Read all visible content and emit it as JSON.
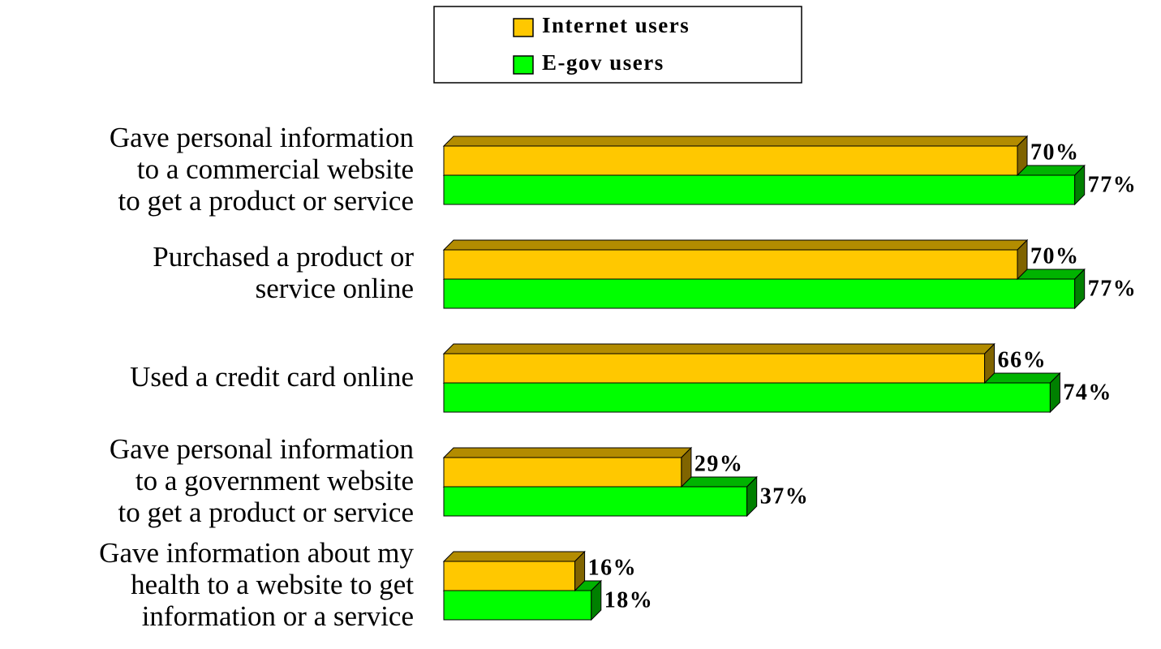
{
  "chart_data": {
    "type": "bar",
    "orientation": "horizontal",
    "categories": [
      "Gave personal information\nto a commercial website\nto get a product or service",
      "Purchased a product or\nservice online",
      "Used a credit card online",
      "Gave personal information\nto a government website\nto get a product or service",
      "Gave information about my\nhealth to a website to get\ninformation or a service"
    ],
    "series": [
      {
        "name": "Internet users",
        "color": "#ffc800",
        "values": [
          70,
          70,
          66,
          29,
          16
        ],
        "value_labels": [
          "70%",
          "70%",
          "66%",
          "29%",
          "16%"
        ]
      },
      {
        "name": "E-gov users",
        "color": "#00ff00",
        "values": [
          77,
          77,
          74,
          37,
          18
        ],
        "value_labels": [
          "77%",
          "77%",
          "74%",
          "37%",
          "18%"
        ]
      }
    ],
    "legend": "top"
  }
}
